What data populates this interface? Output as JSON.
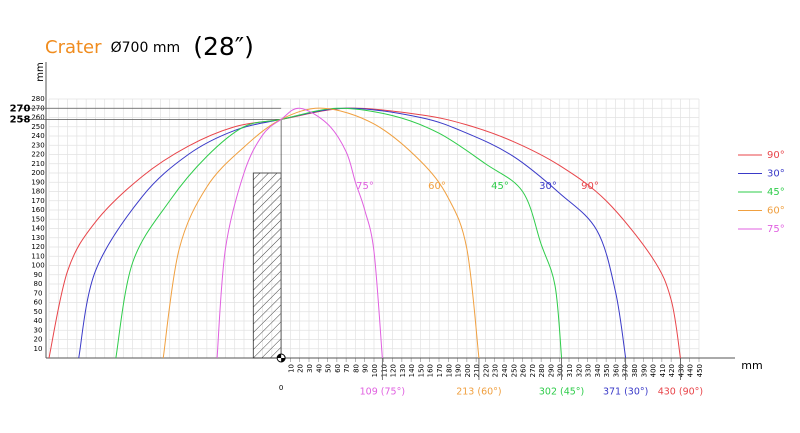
{
  "chart_data": {
    "type": "line",
    "title": {
      "name": "Crater",
      "size": "Ø700 mm",
      "inch": "(28″)"
    },
    "y_label": "mm",
    "x_label": "mm",
    "origin_label": "0",
    "xlim": [
      -250,
      450
    ],
    "ylim": [
      0,
      280
    ],
    "xticks": [
      10,
      20,
      30,
      40,
      50,
      60,
      70,
      80,
      90,
      100,
      110,
      120,
      130,
      140,
      150,
      160,
      170,
      180,
      190,
      200,
      210,
      220,
      230,
      240,
      250,
      260,
      270,
      280,
      290,
      300,
      310,
      320,
      330,
      340,
      350,
      360,
      370,
      380,
      390,
      400,
      410,
      420,
      430,
      440,
      450
    ],
    "yticks": [
      10,
      20,
      30,
      40,
      50,
      60,
      70,
      80,
      90,
      100,
      110,
      120,
      130,
      140,
      150,
      160,
      170,
      180,
      190,
      200,
      210,
      220,
      230,
      240,
      250,
      260,
      270,
      280
    ],
    "ref_lines": [
      270,
      258
    ],
    "obstacle": {
      "x": [
        -30,
        0
      ],
      "height": 200
    },
    "grid": true,
    "series": [
      {
        "name": "90°",
        "color": "#e8454a",
        "end_label": "430 (90°)",
        "x": [
          -250,
          -230,
          -200,
          -150,
          -100,
          -50,
          0,
          70,
          150,
          200,
          250,
          300,
          350,
          400,
          420,
          430
        ],
        "values": [
          0,
          94,
          147,
          196,
          229,
          250,
          258,
          270,
          263,
          252,
          234,
          208,
          170,
          108,
          63,
          0
        ]
      },
      {
        "name": "30°",
        "color": "#3a3ac8",
        "end_label": "371 (30°)",
        "x": [
          -218,
          -200,
          -150,
          -100,
          -50,
          0,
          70,
          150,
          200,
          250,
          300,
          340,
          360,
          371
        ],
        "values": [
          0,
          94,
          174,
          220,
          246,
          258,
          270,
          260,
          243,
          218,
          178,
          138,
          72,
          0
        ]
      },
      {
        "name": "45°",
        "color": "#2ecc4a",
        "end_label": "302 (45°)",
        "x": [
          -178,
          -160,
          -120,
          -80,
          -40,
          0,
          60,
          120,
          170,
          220,
          260,
          280,
          295,
          302
        ],
        "values": [
          0,
          103,
          170,
          218,
          250,
          258,
          270,
          262,
          243,
          210,
          180,
          123,
          78,
          0
        ]
      },
      {
        "name": "60°",
        "color": "#f0a040",
        "end_label": "213 (60°)",
        "x": [
          -127,
          -110,
          -80,
          -40,
          0,
          45,
          100,
          150,
          180,
          200,
          213
        ],
        "values": [
          0,
          117,
          185,
          228,
          258,
          270,
          253,
          213,
          173,
          118,
          0
        ]
      },
      {
        "name": "75°",
        "color": "#e060e0",
        "end_label": "109 (75°)",
        "x": [
          -69,
          -60,
          -40,
          -20,
          0,
          20,
          50,
          70,
          80,
          90,
          100,
          109
        ],
        "values": [
          0,
          118,
          200,
          241,
          258,
          270,
          253,
          223,
          190,
          160,
          115,
          0
        ]
      }
    ]
  }
}
